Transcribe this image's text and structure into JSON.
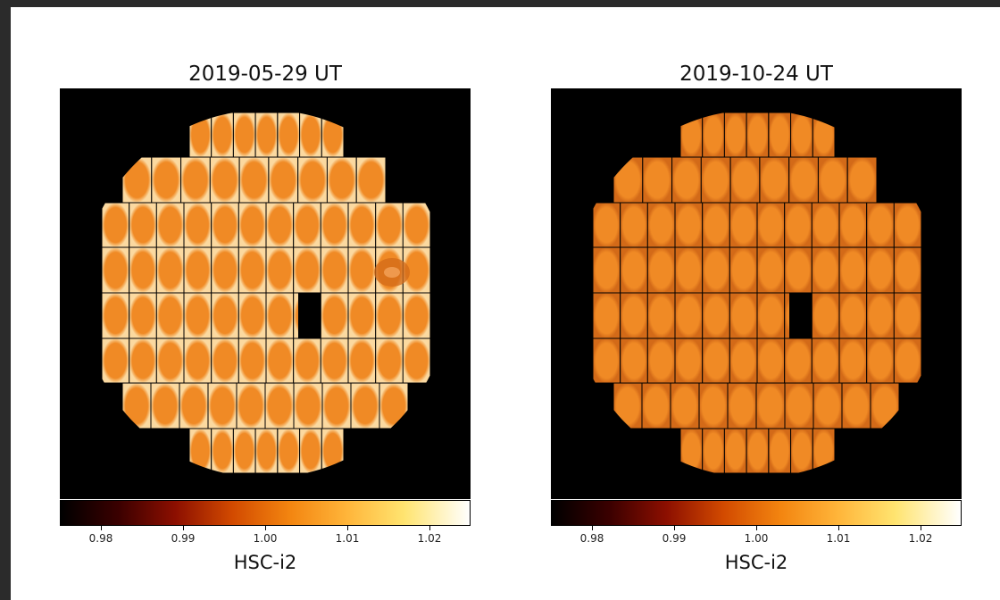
{
  "panels": [
    {
      "title": "2019-05-29 UT",
      "colorbar": {
        "label": "HSC-i2",
        "ticks": [
          "0.98",
          "0.99",
          "1.00",
          "1.01",
          "1.02"
        ],
        "range": [
          0.975,
          1.025
        ]
      },
      "features": {
        "vignetting": "light edges",
        "hole": true,
        "blob": true
      }
    },
    {
      "title": "2019-10-24 UT",
      "colorbar": {
        "label": "HSC-i2",
        "ticks": [
          "0.98",
          "0.99",
          "1.00",
          "1.01",
          "1.02"
        ],
        "range": [
          0.975,
          1.025
        ]
      },
      "features": {
        "vignetting": "darker edges",
        "hole": true,
        "blob": false
      }
    }
  ],
  "colors": {
    "background": "#000000",
    "ccd_fill": "#f08a25",
    "ccd_edge_light": "#fbe3b8",
    "ccd_edge_dark": "#d66e1a",
    "grid": "#000000"
  }
}
